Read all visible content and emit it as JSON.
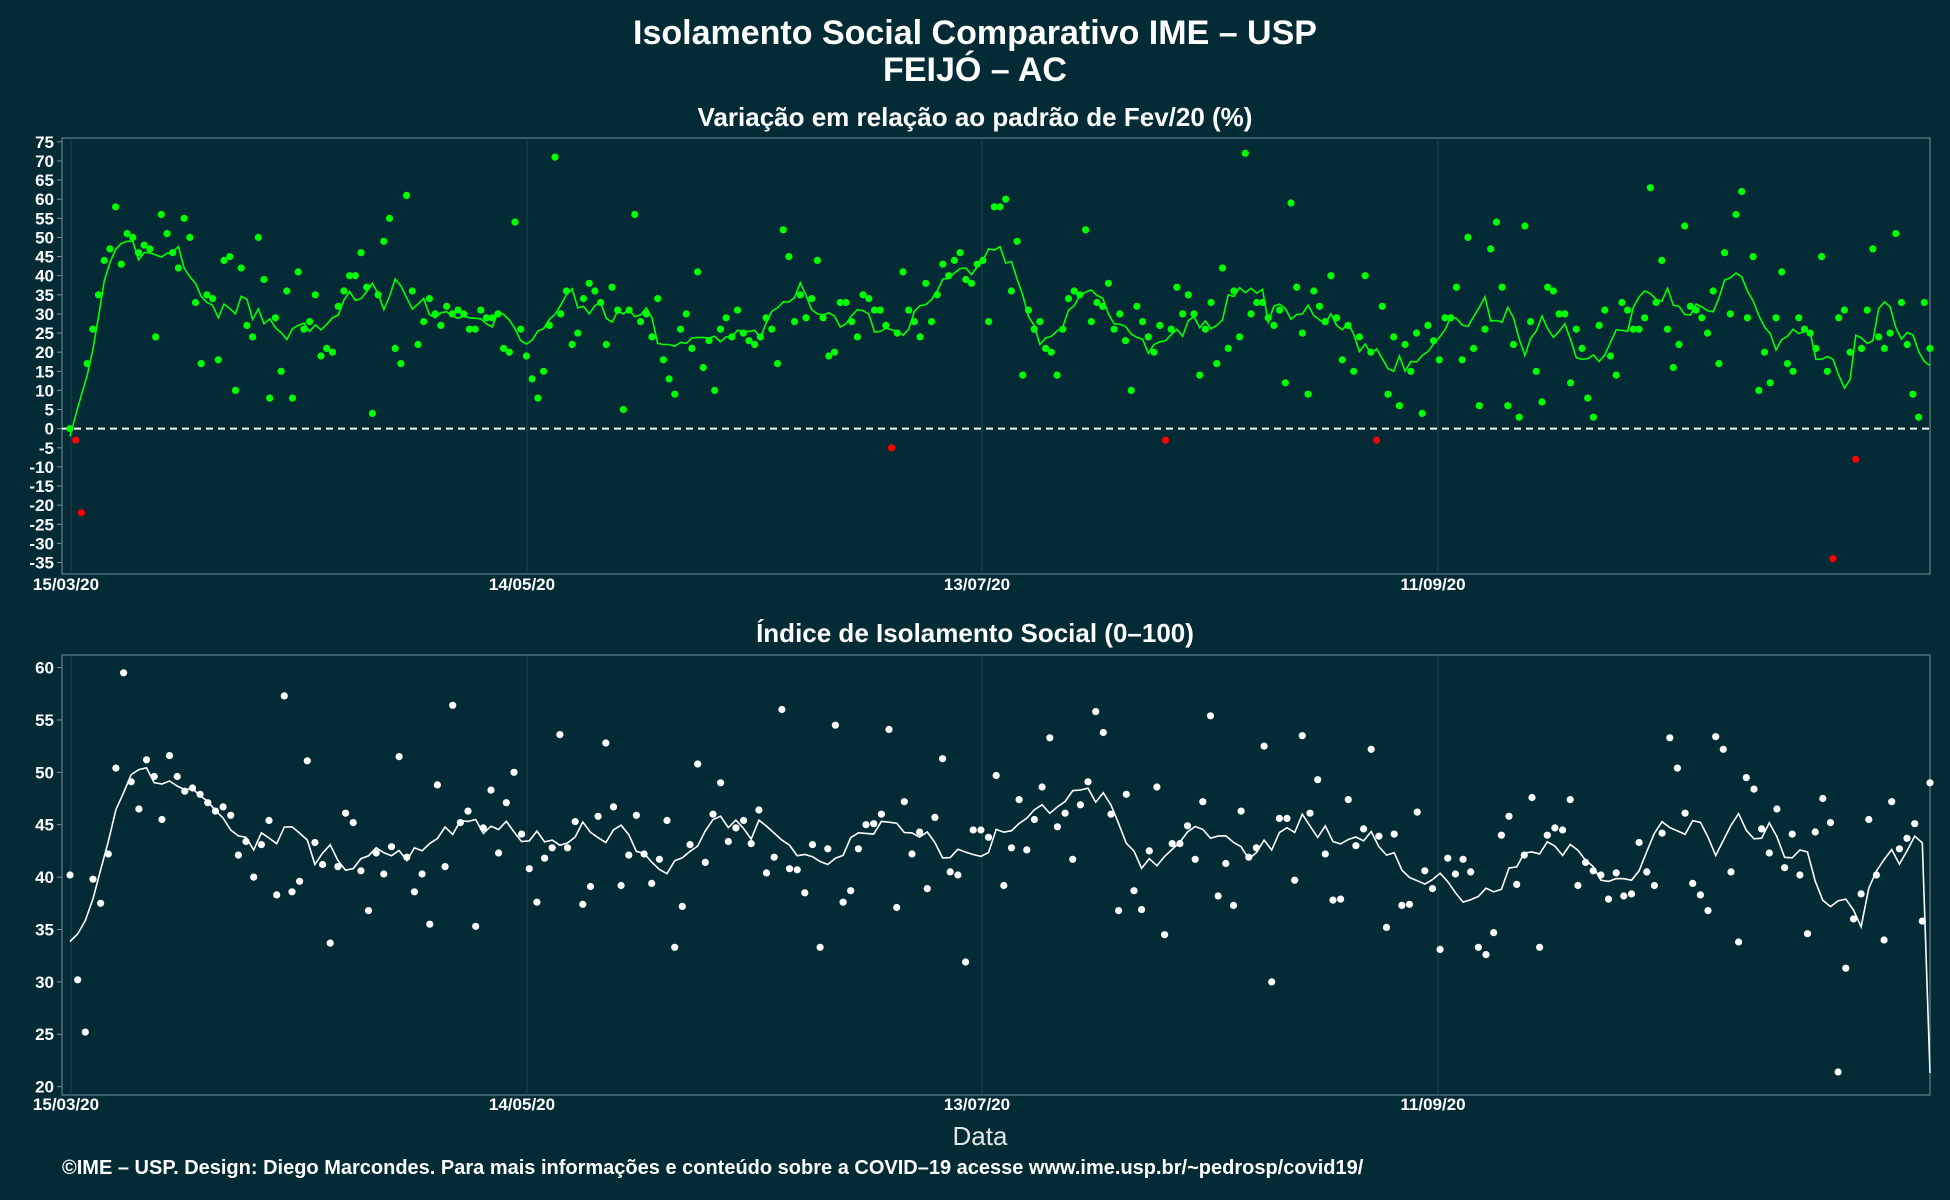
{
  "title_line1": "Isolamento Social Comparativo IME – USP",
  "title_line2": "FEIJÓ – AC",
  "footer": "©IME – USP. Design: Diego Marcondes. Para mais informações e conteúdo sobre a COVID–19 acesse www.ime.usp.br/~pedrosp/covid19/",
  "colors": {
    "background": "#022b35",
    "positive": "#00ff00",
    "negative": "#ff0000",
    "index": "#ffffff"
  },
  "chart_data": [
    {
      "type": "scatter",
      "title": "Variação em relação ao padrão de Fev/20 (%)",
      "xlabel": "",
      "ylabel": "",
      "x_start": "15/03/20",
      "x_ticks": [
        "15/03/20",
        "14/05/20",
        "13/07/20",
        "11/09/20"
      ],
      "y_ticks": [
        75,
        70,
        65,
        60,
        55,
        50,
        45,
        40,
        35,
        30,
        25,
        20,
        15,
        10,
        5,
        0,
        -5,
        -10,
        -15,
        -20,
        -25,
        -30,
        -35
      ],
      "ylim": [
        -38,
        76
      ],
      "reference_line": 0,
      "points": [
        0,
        -3,
        -22,
        17,
        26,
        35,
        44,
        47,
        58,
        43,
        51,
        50,
        46,
        48,
        47,
        24,
        56,
        51,
        46,
        42,
        55,
        50,
        33,
        17,
        35,
        34,
        18,
        44,
        45,
        10,
        42,
        27,
        24,
        50,
        39,
        8,
        29,
        15,
        36,
        8,
        41,
        26,
        28,
        35,
        19,
        21,
        20,
        32,
        36,
        40,
        40,
        46,
        37,
        4,
        35,
        49,
        55,
        21,
        17,
        61,
        36,
        22,
        28,
        34,
        30,
        27,
        32,
        30,
        31,
        30,
        26,
        26,
        31,
        29,
        29,
        30,
        21,
        20,
        54,
        26,
        19,
        13,
        8,
        15,
        27,
        71,
        30,
        36,
        22,
        25,
        34,
        38,
        36,
        33,
        22,
        37,
        31,
        5,
        31,
        56,
        28,
        30,
        24,
        34,
        18,
        13,
        9,
        26,
        30,
        21,
        41,
        16,
        23,
        10,
        26,
        29,
        24,
        31,
        25,
        23,
        22,
        24,
        29,
        26,
        17,
        52,
        45,
        28,
        35,
        29,
        34,
        44,
        29,
        19,
        20,
        33,
        33,
        28,
        24,
        35,
        34,
        31,
        31,
        27,
        -5,
        25,
        41,
        31,
        28,
        24,
        38,
        28,
        35,
        43,
        40,
        44,
        46,
        39,
        38,
        43,
        44,
        28,
        58,
        58,
        60,
        36,
        49,
        14,
        31,
        26,
        28,
        21,
        20,
        14,
        26,
        34,
        36,
        35,
        52,
        28,
        33,
        32,
        38,
        26,
        30,
        23,
        10,
        32,
        28,
        24,
        20,
        27,
        -3,
        26,
        37,
        30,
        35,
        30,
        14,
        26,
        33,
        17,
        42,
        21,
        36,
        24,
        72,
        30,
        33,
        33,
        29,
        27,
        31,
        12,
        59,
        37,
        25,
        9,
        36,
        32,
        28,
        40,
        29,
        18,
        27,
        15,
        24,
        40,
        20,
        -3,
        32,
        9,
        24,
        6,
        22,
        15,
        25,
        4,
        27,
        23,
        18,
        29,
        29,
        37,
        18,
        50,
        21,
        6,
        26,
        47,
        54,
        37,
        6,
        22,
        3,
        53,
        28,
        15,
        7,
        37,
        36,
        30,
        30,
        12,
        26,
        21,
        8,
        3,
        27,
        31,
        19,
        14,
        33,
        31,
        26,
        26,
        29,
        63,
        33,
        44,
        26,
        16,
        22,
        53,
        32,
        31,
        29,
        25,
        36,
        17,
        46,
        30,
        56,
        62,
        29,
        45,
        10,
        20,
        12,
        29,
        41,
        17,
        15,
        29,
        26,
        25,
        21,
        45,
        15,
        -34,
        29,
        31,
        20,
        -8,
        21,
        31,
        47,
        24,
        21,
        25,
        51,
        33,
        22,
        9,
        3,
        33,
        21
      ]
    },
    {
      "type": "scatter",
      "title": "Índice de Isolamento Social (0–100)",
      "xlabel": "Data",
      "ylabel": "",
      "x_start": "15/03/20",
      "x_ticks": [
        "15/03/20",
        "14/05/20",
        "13/07/20",
        "11/09/20"
      ],
      "y_ticks": [
        60,
        55,
        50,
        45,
        40,
        35,
        30,
        25,
        20
      ],
      "ylim": [
        19.2,
        61.2
      ],
      "points": [
        40.2,
        30.2,
        25.2,
        39.8,
        37.5,
        42.2,
        50.4,
        59.5,
        49.1,
        46.5,
        51.2,
        49.6,
        45.5,
        51.6,
        49.6,
        48.2,
        48.5,
        47.9,
        47.1,
        46.3,
        46.7,
        45.9,
        42.1,
        43.4,
        40.0,
        43.1,
        45.4,
        38.3,
        57.3,
        38.6,
        39.6,
        51.1,
        43.3,
        41.2,
        33.7,
        41.0,
        46.1,
        45.2,
        40.6,
        36.8,
        42.3,
        40.3,
        42.9,
        51.5,
        41.9,
        38.6,
        40.3,
        35.5,
        48.8,
        41.0,
        56.4,
        45.2,
        46.3,
        35.3,
        44.7,
        48.3,
        42.3,
        47.1,
        50.0,
        44.1,
        40.8,
        37.6,
        41.8,
        42.8,
        53.6,
        42.8,
        45.3,
        37.4,
        39.1,
        45.8,
        52.8,
        46.7,
        39.2,
        42.1,
        45.9,
        42.2,
        39.4,
        41.7,
        45.4,
        33.3,
        37.2,
        43.1,
        50.8,
        41.4,
        46.0,
        49.0,
        43.4,
        44.7,
        45.4,
        43.2,
        46.4,
        40.4,
        41.9,
        56.0,
        40.8,
        40.7,
        38.5,
        43.1,
        33.3,
        42.7,
        54.5,
        37.6,
        38.7,
        42.7,
        45.0,
        45.1,
        46.0,
        54.1,
        37.1,
        47.2,
        42.2,
        44.3,
        38.9,
        45.7,
        51.3,
        40.5,
        40.2,
        31.9,
        44.5,
        44.5,
        43.8,
        49.7,
        39.2,
        42.8,
        47.4,
        42.6,
        45.5,
        48.6,
        53.3,
        44.8,
        46.1,
        41.7,
        46.9,
        49.1,
        55.8,
        53.8,
        46.0,
        36.8,
        47.9,
        38.7,
        36.9,
        42.5,
        48.6,
        34.5,
        43.2,
        43.2,
        44.9,
        41.7,
        47.2,
        55.4,
        38.2,
        41.3,
        37.3,
        46.3,
        41.9,
        42.8,
        52.5,
        30.0,
        45.6,
        45.6,
        39.7,
        53.5,
        46.1,
        49.3,
        42.2,
        37.8,
        37.9,
        47.4,
        43.0,
        44.6,
        52.2,
        43.9,
        35.2,
        44.1,
        37.3,
        37.4,
        46.2,
        40.6,
        38.9,
        33.1,
        41.8,
        40.3,
        41.7,
        40.5,
        33.3,
        32.6,
        34.7,
        44.0,
        45.8,
        39.3,
        42.1,
        47.6,
        33.3,
        44.0,
        44.7,
        44.5,
        47.4,
        39.2,
        41.4,
        40.6,
        40.2,
        37.9,
        40.4,
        38.2,
        38.4,
        43.3,
        40.5,
        39.2,
        44.2,
        53.3,
        50.4,
        46.1,
        39.4,
        38.3,
        36.8,
        53.4,
        52.2,
        40.5,
        33.8,
        49.5,
        48.4,
        44.6,
        42.3,
        46.5,
        40.9,
        44.1,
        40.2,
        34.6,
        44.3,
        47.5,
        45.2,
        21.4,
        31.3,
        36.0,
        38.4,
        45.5,
        40.2,
        34.0,
        47.2,
        42.7,
        43.7,
        45.1,
        35.8,
        49.0
      ],
      "moving_average_last": 21.3
    }
  ]
}
